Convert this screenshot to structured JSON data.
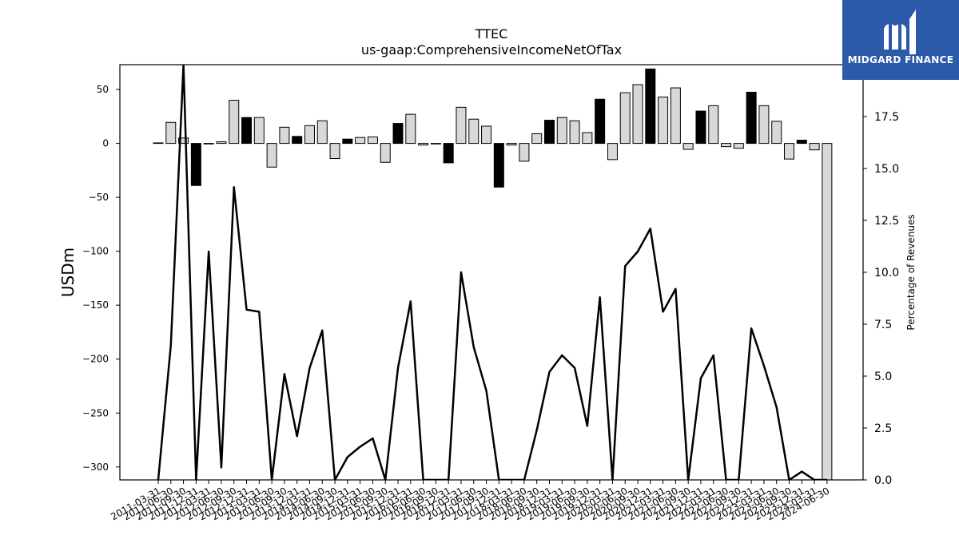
{
  "chart_data": {
    "type": "bar",
    "title": "TTEC",
    "subtitle": "us-gaap:ComprehensiveIncomeNetOfTax",
    "ylabel": "USDm",
    "y2label": "Percentage of Revenues",
    "ylim": [
      -312,
      73
    ],
    "y2lim": [
      0,
      20
    ],
    "yticks": [
      -300,
      -250,
      -200,
      -150,
      -100,
      -50,
      0,
      50
    ],
    "y2ticks": [
      0.0,
      2.5,
      5.0,
      7.5,
      10.0,
      12.5,
      15.0,
      17.5
    ],
    "categories": [
      "2011-03-31",
      "2011-06-30",
      "2011-09-30",
      "2011-12-31",
      "2012-03-31",
      "2012-06-30",
      "2012-09-30",
      "2012-12-31",
      "2013-03-31",
      "2013-06-30",
      "2013-09-30",
      "2013-12-31",
      "2014-03-31",
      "2014-06-30",
      "2014-09-30",
      "2014-12-31",
      "2015-03-31",
      "2015-06-30",
      "2015-09-30",
      "2015-12-31",
      "2016-03-31",
      "2016-06-30",
      "2016-09-30",
      "2016-12-31",
      "2017-03-31",
      "2017-06-30",
      "2017-09-30",
      "2017-12-31",
      "2018-03-31",
      "2018-06-30",
      "2018-09-30",
      "2018-12-31",
      "2019-03-31",
      "2019-06-30",
      "2019-09-30",
      "2019-12-31",
      "2020-03-31",
      "2020-06-30",
      "2020-09-30",
      "2020-12-31",
      "2021-03-31",
      "2021-06-30",
      "2021-09-30",
      "2021-12-31",
      "2022-03-31",
      "2022-06-30",
      "2022-09-30",
      "2022-12-31",
      "2023-03-31",
      "2023-06-30",
      "2023-09-30",
      "2023-12-31",
      "2024-03-31",
      "2024-06-30"
    ],
    "series": [
      {
        "name": "",
        "axis": "left",
        "values": [
          0.5,
          19.5,
          5,
          -39,
          -0.5,
          1.5,
          40,
          24,
          24,
          -22,
          15,
          6.5,
          16.5,
          21,
          -14,
          4,
          5.5,
          6,
          -17.5,
          18.5,
          27,
          -1.5,
          -0.5,
          -18,
          33.5,
          22.5,
          16,
          -40.5,
          -1.5,
          -16.5,
          9,
          21.5,
          24,
          21,
          10,
          41,
          -15,
          47,
          54.5,
          69,
          43,
          51.5,
          -5.5,
          30,
          35,
          -3,
          -4.5,
          47.5,
          35,
          20.5,
          -14.5,
          3,
          -6,
          -312
        ],
        "highlighted": [
          false,
          false,
          false,
          true,
          false,
          false,
          false,
          true,
          false,
          false,
          false,
          true,
          false,
          false,
          false,
          true,
          false,
          false,
          false,
          true,
          false,
          false,
          false,
          true,
          false,
          false,
          false,
          true,
          false,
          false,
          false,
          true,
          false,
          false,
          false,
          true,
          false,
          false,
          false,
          true,
          false,
          false,
          false,
          true,
          false,
          false,
          false,
          true,
          false,
          false,
          false,
          true,
          false,
          false
        ]
      },
      {
        "name": "",
        "axis": "right",
        "type": "line",
        "values": [
          0,
          6.5,
          20,
          0,
          11,
          0.6,
          14.1,
          8.2,
          8.1,
          0,
          5.1,
          2.1,
          5.4,
          7.2,
          0,
          1.1,
          1.6,
          2,
          0,
          5.4,
          8.6,
          0,
          0,
          0,
          10,
          6.4,
          4.3,
          0,
          0,
          0,
          2.4,
          5.2,
          6,
          5.4,
          2.6,
          8.8,
          0,
          10.3,
          11,
          12.1,
          8.1,
          9.2,
          0,
          4.9,
          6,
          0,
          0,
          7.3,
          5.5,
          3.5,
          0,
          0.4,
          0,
          0
        ]
      }
    ],
    "colors": {
      "bar_fill": "#d8d8d8",
      "bar_highlight": "#000000",
      "bar_edge": "#000000",
      "line": "#000000"
    }
  },
  "logo": {
    "text": "MIDGARD FINANCE"
  }
}
